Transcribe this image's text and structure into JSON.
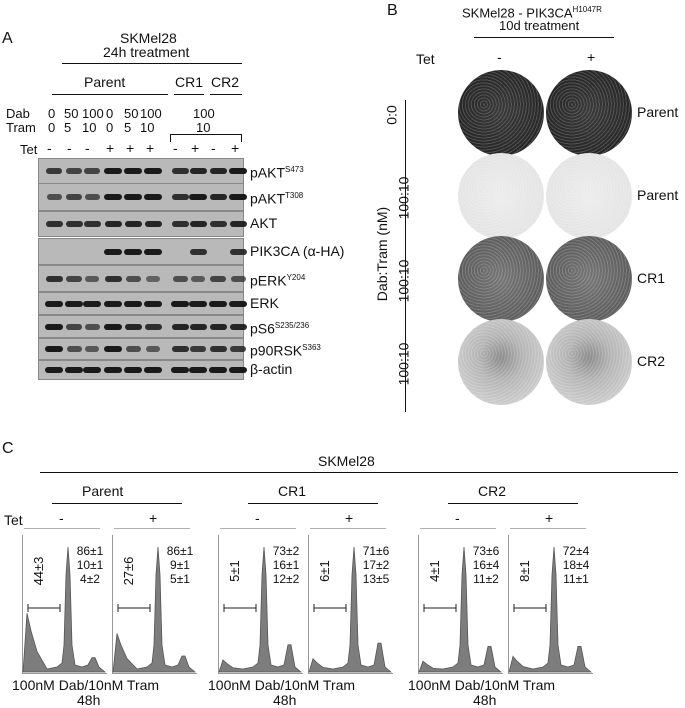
{
  "panelA": {
    "letter": "A",
    "cell_line": "SKMel28",
    "treatment": "24h treatment",
    "group_parent": "Parent",
    "group_cr1": "CR1",
    "group_cr2": "CR2",
    "row_dab": "Dab",
    "row_tram": "Tram",
    "row_tet": "Tet",
    "dab_values": [
      "0",
      "50",
      "100",
      "0",
      "50",
      "100"
    ],
    "tram_values": [
      "0",
      "5",
      "10",
      "0",
      "5",
      "10"
    ],
    "cr_dab": "100",
    "cr_tram": "10",
    "tet_values": [
      "-",
      "-",
      "-",
      "+",
      "+",
      "+",
      "-",
      "+",
      "-",
      "+"
    ],
    "blots": [
      {
        "name": "pAKT",
        "sup": "S473"
      },
      {
        "name": "pAKT",
        "sup": "T308"
      },
      {
        "name": "AKT",
        "sup": ""
      },
      {
        "name": "PIK3CA (α-HA)",
        "sup": ""
      },
      {
        "name": "pERK",
        "sup": "Y204"
      },
      {
        "name": "ERK",
        "sup": ""
      },
      {
        "name": "pS6",
        "sup": "S235/236"
      },
      {
        "name": "p90RSK",
        "sup": "S363"
      },
      {
        "name": "β-actin",
        "sup": ""
      }
    ]
  },
  "panelB": {
    "letter": "B",
    "title": "SKMel28 - PIK3CA",
    "title_sup": "H1047R",
    "treatment": "10d treatment",
    "tet_label": "Tet",
    "tet_minus": "-",
    "tet_plus": "+",
    "axis_label": "Dab:Tram (nM)",
    "rows": [
      {
        "dose": "0:0",
        "label": "Parent",
        "density": [
          "dark",
          "dark"
        ]
      },
      {
        "dose": "100:10",
        "label": "Parent",
        "density": [
          "blank",
          "blank"
        ]
      },
      {
        "dose": "100:10",
        "label": "CR1",
        "density": [
          "medium",
          "medium"
        ]
      },
      {
        "dose": "100:10",
        "label": "CR2",
        "density": [
          "light",
          "light"
        ]
      }
    ]
  },
  "panelC": {
    "letter": "C",
    "cell_line": "SKMel28",
    "tet_label": "Tet",
    "footer_line1": "100nM Dab/10nM Tram",
    "footer_line2": "48h",
    "groups": [
      {
        "name": "Parent",
        "hists": [
          {
            "tet": "-",
            "subG1": "44±3",
            "g1": "86±1",
            "s": "10±1",
            "g2m": "4±2"
          },
          {
            "tet": "+",
            "subG1": "27±6",
            "g1": "86±1",
            "s": "9±1",
            "g2m": "5±1"
          }
        ]
      },
      {
        "name": "CR1",
        "hists": [
          {
            "tet": "-",
            "subG1": "5±1",
            "g1": "73±2",
            "s": "16±1",
            "g2m": "12±2"
          },
          {
            "tet": "+",
            "subG1": "6±1",
            "g1": "71±6",
            "s": "17±2",
            "g2m": "13±5"
          }
        ]
      },
      {
        "name": "CR2",
        "hists": [
          {
            "tet": "-",
            "subG1": "4±1",
            "g1": "73±6",
            "s": "16±4",
            "g2m": "11±2"
          },
          {
            "tet": "+",
            "subG1": "8±1",
            "g1": "72±4",
            "s": "18±4",
            "g2m": "11±1"
          }
        ]
      }
    ]
  }
}
